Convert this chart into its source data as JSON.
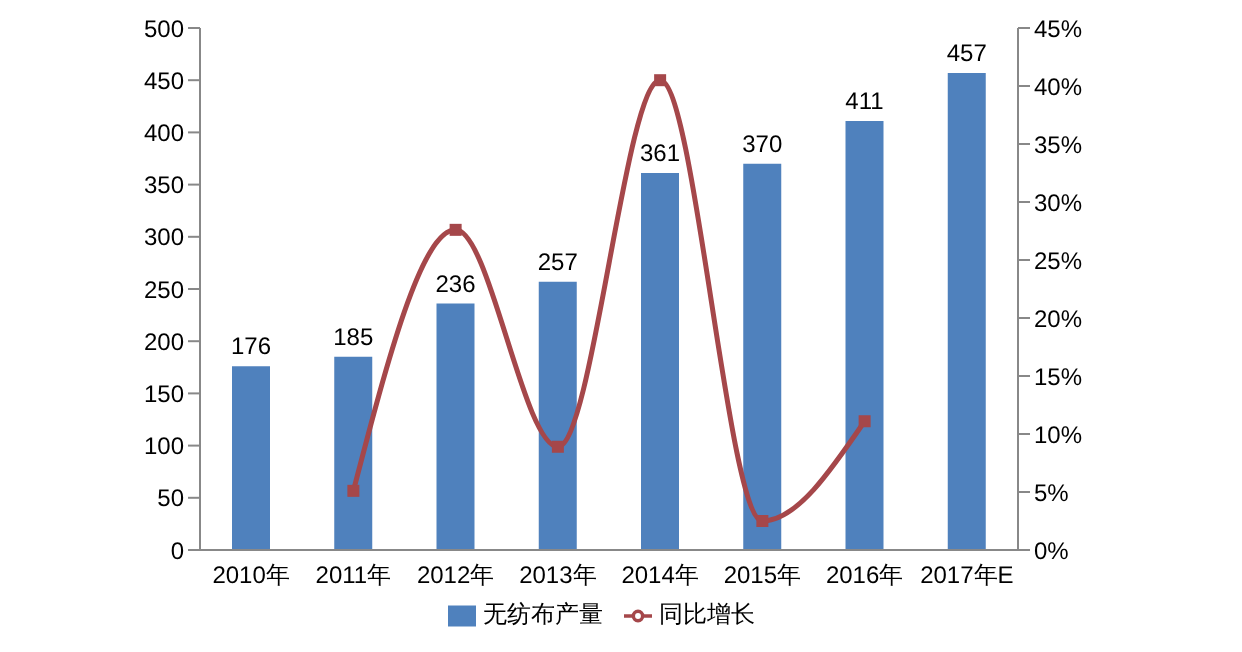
{
  "chart_data": {
    "type": "bar",
    "categories": [
      "2010年",
      "2011年",
      "2012年",
      "2013年",
      "2014年",
      "2015年",
      "2016年",
      "2017年E"
    ],
    "series": [
      {
        "name": "无纺布产量",
        "color": "#4f81bd",
        "values": [
          176,
          185,
          236,
          257,
          361,
          370,
          411,
          457
        ],
        "value_labels": [
          "176",
          "185",
          "236",
          "257",
          "361",
          "370",
          "411",
          "457"
        ]
      },
      {
        "name": "同比增长",
        "type": "line",
        "axis": "y2",
        "color": "#a5474a",
        "values": [
          null,
          5.1,
          27.6,
          8.9,
          40.5,
          2.5,
          11.1,
          null
        ]
      }
    ],
    "ylim": [
      0,
      500
    ],
    "yticks": [
      0,
      50,
      100,
      150,
      200,
      250,
      300,
      350,
      400,
      450,
      500
    ],
    "y2lim": [
      0,
      45
    ],
    "y2ticks": [
      {
        "value": 0,
        "label": "0%"
      },
      {
        "value": 5,
        "label": "5%"
      },
      {
        "value": 10,
        "label": "10%"
      },
      {
        "value": 15,
        "label": "15%"
      },
      {
        "value": 20,
        "label": "20%"
      },
      {
        "value": 25,
        "label": "25%"
      },
      {
        "value": 30,
        "label": "30%"
      },
      {
        "value": 35,
        "label": "35%"
      },
      {
        "value": 40,
        "label": "40%"
      },
      {
        "value": 45,
        "label": "45%"
      }
    ],
    "grid": false,
    "legend": "bottom",
    "marker": "square",
    "line_style": "solid"
  }
}
